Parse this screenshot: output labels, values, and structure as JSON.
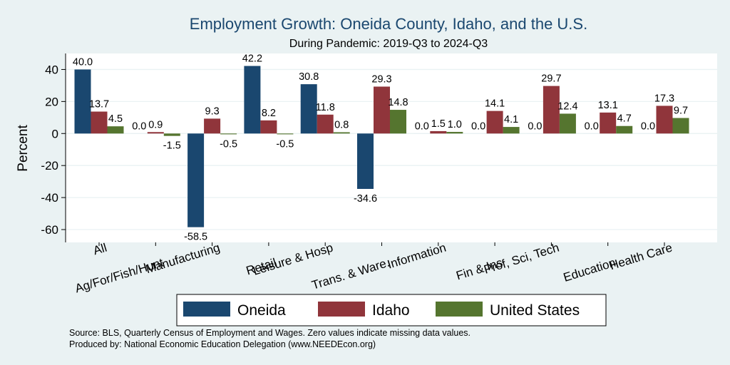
{
  "chart_data": {
    "type": "bar",
    "title": "Employment Growth: Oneida County, Idaho, and the U.S.",
    "subtitle": "During Pandemic: 2019-Q3 to 2024-Q3",
    "ylabel": "Percent",
    "xlabel": "",
    "ylim": [
      -68,
      50
    ],
    "yticks": [
      -60,
      -40,
      -20,
      0,
      20,
      40
    ],
    "grid": true,
    "legend": "bottom",
    "categories": [
      "All",
      "Ag/For/Fish/Hunt",
      "Manufacturing",
      "Retail",
      "Leisure & Hosp",
      "Trans. & Ware.",
      "Information",
      "Fin & Ins",
      "Prof, Sci, Tech",
      "Education",
      "Health Care"
    ],
    "series": [
      {
        "name": "Oneida",
        "color": "#1a476f",
        "values": [
          40.0,
          0.0,
          -58.5,
          42.2,
          30.8,
          -34.6,
          0.0,
          0.0,
          0.0,
          0.0,
          0.0
        ]
      },
      {
        "name": "Idaho",
        "color": "#90353b",
        "values": [
          13.7,
          0.9,
          9.3,
          8.2,
          11.8,
          29.3,
          1.5,
          14.1,
          29.7,
          13.1,
          17.3
        ]
      },
      {
        "name": "United States",
        "color": "#55752f",
        "values": [
          4.5,
          -1.5,
          -0.5,
          -0.5,
          0.8,
          14.8,
          1.0,
          4.1,
          12.4,
          4.7,
          9.7
        ]
      }
    ],
    "notes": [
      "Source: BLS, Quarterly Census of Employment and Wages. Zero values indicate missing data values.",
      "Produced by: National Economic Education Delegation (www.NEEDEcon.org)"
    ]
  },
  "colors": {
    "background": "#eaf2f3",
    "plot_background": "#ffffff",
    "grid": "#eaf2f3",
    "title": "#1a476f"
  }
}
